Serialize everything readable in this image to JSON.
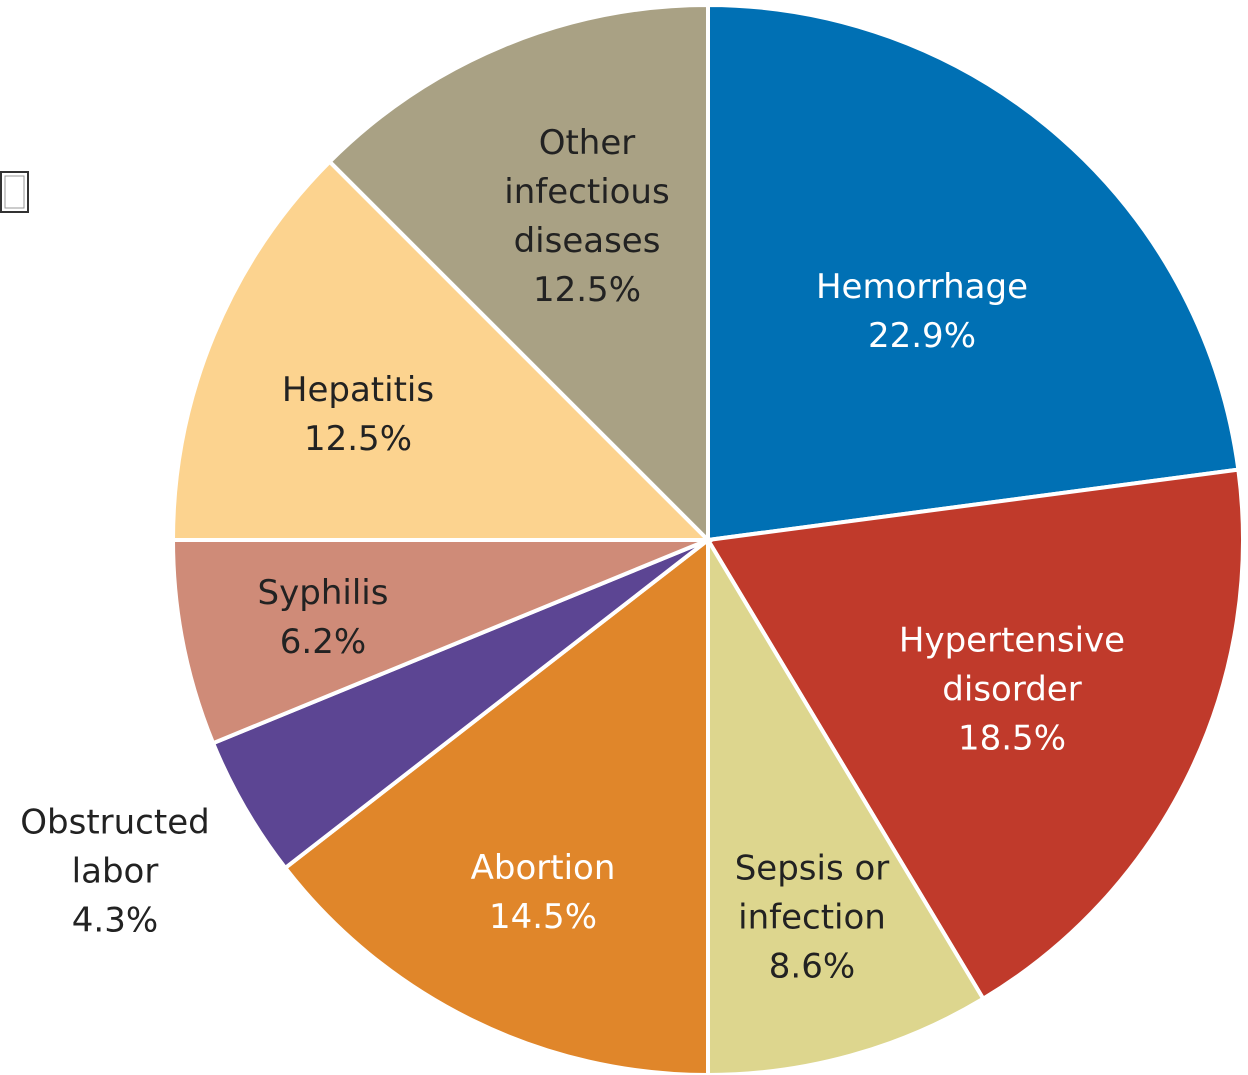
{
  "chart_data": {
    "type": "pie",
    "categories": [
      "Hemorrhage",
      "Hypertensive disorder",
      "Sepsis or infection",
      "Abortion",
      "Obstructed labor",
      "Syphilis",
      "Hepatitis",
      "Other infectious diseases"
    ],
    "values": [
      22.9,
      18.5,
      8.6,
      14.5,
      4.3,
      6.2,
      12.5,
      12.5
    ],
    "value_labels": [
      "22.9%",
      "18.5%",
      "8.6%",
      "14.5%",
      "4.3%",
      "6.2%",
      "12.5%",
      "12.5%"
    ],
    "colors": [
      "#0070b4",
      "#c03a2b",
      "#ddd68e",
      "#e0862a",
      "#5c4593",
      "#cf8b78",
      "#fcd38f",
      "#a9a184"
    ]
  }
}
